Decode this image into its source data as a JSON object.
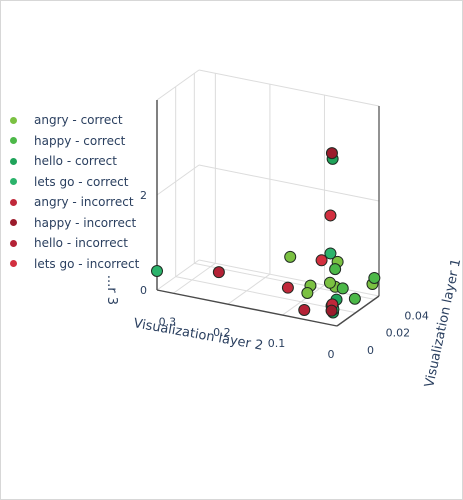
{
  "chart_data": {
    "type": "scatter",
    "dimensions": 3,
    "title": "",
    "axes": {
      "x": {
        "label": "Visualization layer 1",
        "ticks": [
          "0",
          "0.02",
          "0.04"
        ],
        "range": [
          0,
          0.045
        ]
      },
      "y": {
        "label": "Visualization layer 2",
        "ticks": [
          "0",
          "0.1",
          "0.2",
          "0.3"
        ],
        "range": [
          0,
          0.33
        ]
      },
      "z": {
        "label": "...r 3",
        "ticks": [
          "0",
          "2"
        ],
        "range": [
          0,
          4
        ]
      }
    },
    "grid": true,
    "legend": {
      "placement": "left",
      "entries": [
        {
          "label": "angry - correct",
          "color": "#7bc142"
        },
        {
          "label": "happy - correct",
          "color": "#4cb848"
        },
        {
          "label": "hello - correct",
          "color": "#1fa35a"
        },
        {
          "label": "lets go - correct",
          "color": "#2bb36b"
        },
        {
          "label": "angry - incorrect",
          "color": "#c0283a"
        },
        {
          "label": "happy - incorrect",
          "color": "#9b1c2c"
        },
        {
          "label": "hello - incorrect",
          "color": "#b42236"
        },
        {
          "label": "lets go - incorrect",
          "color": "#d22f3f"
        }
      ]
    },
    "series": [
      {
        "name": "angry - correct",
        "color": "#7bc142",
        "points": [
          {
            "x": 0.02,
            "y": 0.12,
            "z": 0.9
          },
          {
            "x": 0.03,
            "y": 0.1,
            "z": 0.2
          },
          {
            "x": 0.015,
            "y": 0.08,
            "z": 0.3
          },
          {
            "x": 0.038,
            "y": 0.0,
            "z": 0.35
          },
          {
            "x": 0.001,
            "y": 0.005,
            "z": 0.8
          },
          {
            "x": 0.01,
            "y": 0.03,
            "z": 0.7
          },
          {
            "x": 0.003,
            "y": 0.004,
            "z": 1.3
          }
        ]
      },
      {
        "name": "happy - correct",
        "color": "#4cb848",
        "points": [
          {
            "x": 0.012,
            "y": 0.01,
            "z": 0.6
          },
          {
            "x": 0.005,
            "y": 0.012,
            "z": 1.1
          },
          {
            "x": 0.025,
            "y": 0.01,
            "z": 0.2
          },
          {
            "x": 0.04,
            "y": 0.0,
            "z": 0.45
          }
        ]
      },
      {
        "name": "hello - correct",
        "color": "#1fa35a",
        "points": [
          {
            "x": 0.0,
            "y": 0.01,
            "z": 0.4
          },
          {
            "x": 0.002,
            "y": 0.011,
            "z": 0.35
          },
          {
            "x": 0.001,
            "y": 0.009,
            "z": 0.25
          },
          {
            "x": 0.003,
            "y": 0.006,
            "z": 0.5
          },
          {
            "x": 0.0,
            "y": 0.008,
            "z": 3.5
          }
        ]
      },
      {
        "name": "lets go - correct",
        "color": "#2bb36b",
        "points": [
          {
            "x": 0.0,
            "y": 0.33,
            "z": 0.4
          },
          {
            "x": 0.0,
            "y": 0.012,
            "z": 1.5
          },
          {
            "x": 0.002,
            "y": 0.01,
            "z": 0.3
          }
        ]
      },
      {
        "name": "angry - incorrect",
        "color": "#c0283a",
        "points": [
          {
            "x": 0.0,
            "y": 0.09,
            "z": 0.6
          },
          {
            "x": 0.002,
            "y": 0.012,
            "z": 0.4
          }
        ]
      },
      {
        "name": "happy - incorrect",
        "color": "#9b1c2c",
        "points": [
          {
            "x": 0.0,
            "y": 0.01,
            "z": 0.3
          },
          {
            "x": 0.001,
            "y": 0.011,
            "z": 3.6
          }
        ]
      },
      {
        "name": "hello - incorrect",
        "color": "#b42236",
        "points": [
          {
            "x": 0.0,
            "y": 0.06,
            "z": 0.2
          },
          {
            "x": 0.002,
            "y": 0.22,
            "z": 0.6
          }
        ]
      },
      {
        "name": "lets go - incorrect",
        "color": "#d22f3f",
        "points": [
          {
            "x": 0.0,
            "y": 0.012,
            "z": 2.3
          },
          {
            "x": 0.001,
            "y": 0.03,
            "z": 1.3
          }
        ]
      }
    ]
  }
}
